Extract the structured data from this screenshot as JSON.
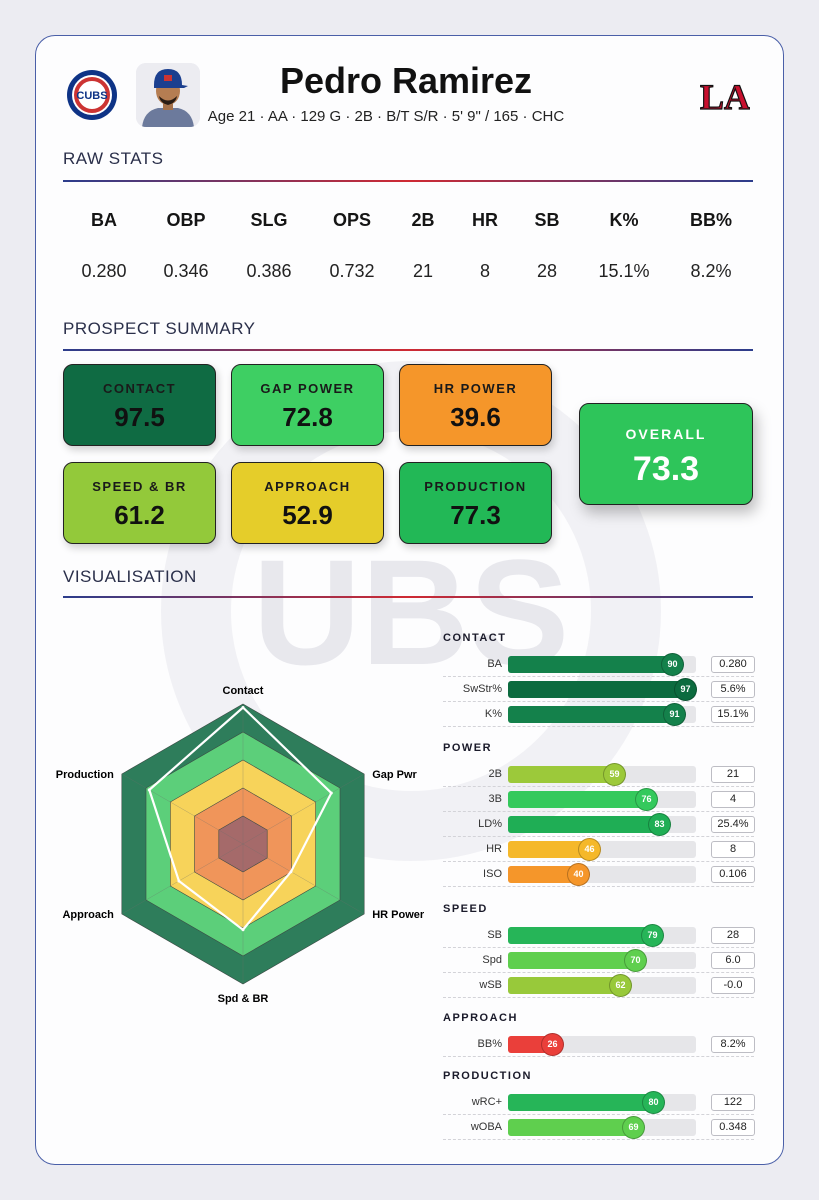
{
  "player": {
    "name": "Pedro Ramirez",
    "meta": "Age 21 · AA · 129 G · 2B · B/T S/R · 5' 9\" / 165 · CHC",
    "team_logo_text": "CUBS",
    "brand_logo_text": "LA"
  },
  "sections": {
    "raw_stats": "RAW STATS",
    "summary": "PROSPECT SUMMARY",
    "visualisation": "VISUALISATION"
  },
  "watermark_text": "UBS",
  "raw_stats": [
    {
      "label": "BA",
      "value": "0.280"
    },
    {
      "label": "OBP",
      "value": "0.346"
    },
    {
      "label": "SLG",
      "value": "0.386"
    },
    {
      "label": "OPS",
      "value": "0.732"
    },
    {
      "label": "2B",
      "value": "21"
    },
    {
      "label": "HR",
      "value": "8"
    },
    {
      "label": "SB",
      "value": "28"
    },
    {
      "label": "K%",
      "value": "15.1%"
    },
    {
      "label": "BB%",
      "value": "8.2%"
    }
  ],
  "tiles": [
    {
      "label": "CONTACT",
      "value": "97.5",
      "color": "#0f6b43"
    },
    {
      "label": "GAP POWER",
      "value": "72.8",
      "color": "#3ecf63"
    },
    {
      "label": "HR POWER",
      "value": "39.6",
      "color": "#f5962a"
    },
    {
      "label": "SPEED & BR",
      "value": "61.2",
      "color": "#93c93a"
    },
    {
      "label": "APPROACH",
      "value": "52.9",
      "color": "#e5cd2a"
    },
    {
      "label": "PRODUCTION",
      "value": "77.3",
      "color": "#22b856"
    }
  ],
  "overall": {
    "label": "OVERALL",
    "value": "73.3",
    "color": "#2ec55a"
  },
  "radar": {
    "labels": [
      "Contact",
      "Gap Pwr",
      "HR Power",
      "Spd & BR",
      "Approach",
      "Production"
    ],
    "values": [
      97.5,
      72.8,
      39.6,
      61.2,
      52.9,
      77.3
    ],
    "max": 100,
    "bands": [
      {
        "level": 100,
        "color": "#2e7d5b"
      },
      {
        "level": 80,
        "color": "#5ccf7a"
      },
      {
        "level": 60,
        "color": "#f7d35a"
      },
      {
        "level": 40,
        "color": "#f0955a"
      },
      {
        "level": 20,
        "color": "#a56a6a"
      }
    ]
  },
  "metrics": [
    {
      "title": "CONTACT",
      "rows": [
        {
          "label": "BA",
          "pct": 90,
          "value": "0.280",
          "color": "#14814b"
        },
        {
          "label": "SwStr%",
          "pct": 97,
          "value": "5.6%",
          "color": "#0c6b3f"
        },
        {
          "label": "K%",
          "pct": 91,
          "value": "15.1%",
          "color": "#14814b"
        }
      ]
    },
    {
      "title": "POWER",
      "rows": [
        {
          "label": "2B",
          "pct": 59,
          "value": "21",
          "color": "#9cc93a"
        },
        {
          "label": "3B",
          "pct": 76,
          "value": "4",
          "color": "#34c95c"
        },
        {
          "label": "LD%",
          "pct": 83,
          "value": "25.4%",
          "color": "#1fae55"
        },
        {
          "label": "HR",
          "pct": 46,
          "value": "8",
          "color": "#f5b82a"
        },
        {
          "label": "ISO",
          "pct": 40,
          "value": "0.106",
          "color": "#f5962a"
        }
      ]
    },
    {
      "title": "SPEED",
      "rows": [
        {
          "label": "SB",
          "pct": 79,
          "value": "28",
          "color": "#26b558"
        },
        {
          "label": "Spd",
          "pct": 70,
          "value": "6.0",
          "color": "#5fcf4e"
        },
        {
          "label": "wSB",
          "pct": 62,
          "value": "-0.0",
          "color": "#98c93a"
        }
      ]
    },
    {
      "title": "APPROACH",
      "rows": [
        {
          "label": "BB%",
          "pct": 26,
          "value": "8.2%",
          "color": "#ea3f3a"
        }
      ]
    },
    {
      "title": "PRODUCTION",
      "rows": [
        {
          "label": "wRC+",
          "pct": 80,
          "value": "122",
          "color": "#26b558"
        },
        {
          "label": "wOBA",
          "pct": 69,
          "value": "0.348",
          "color": "#5fcf4e"
        }
      ]
    }
  ]
}
